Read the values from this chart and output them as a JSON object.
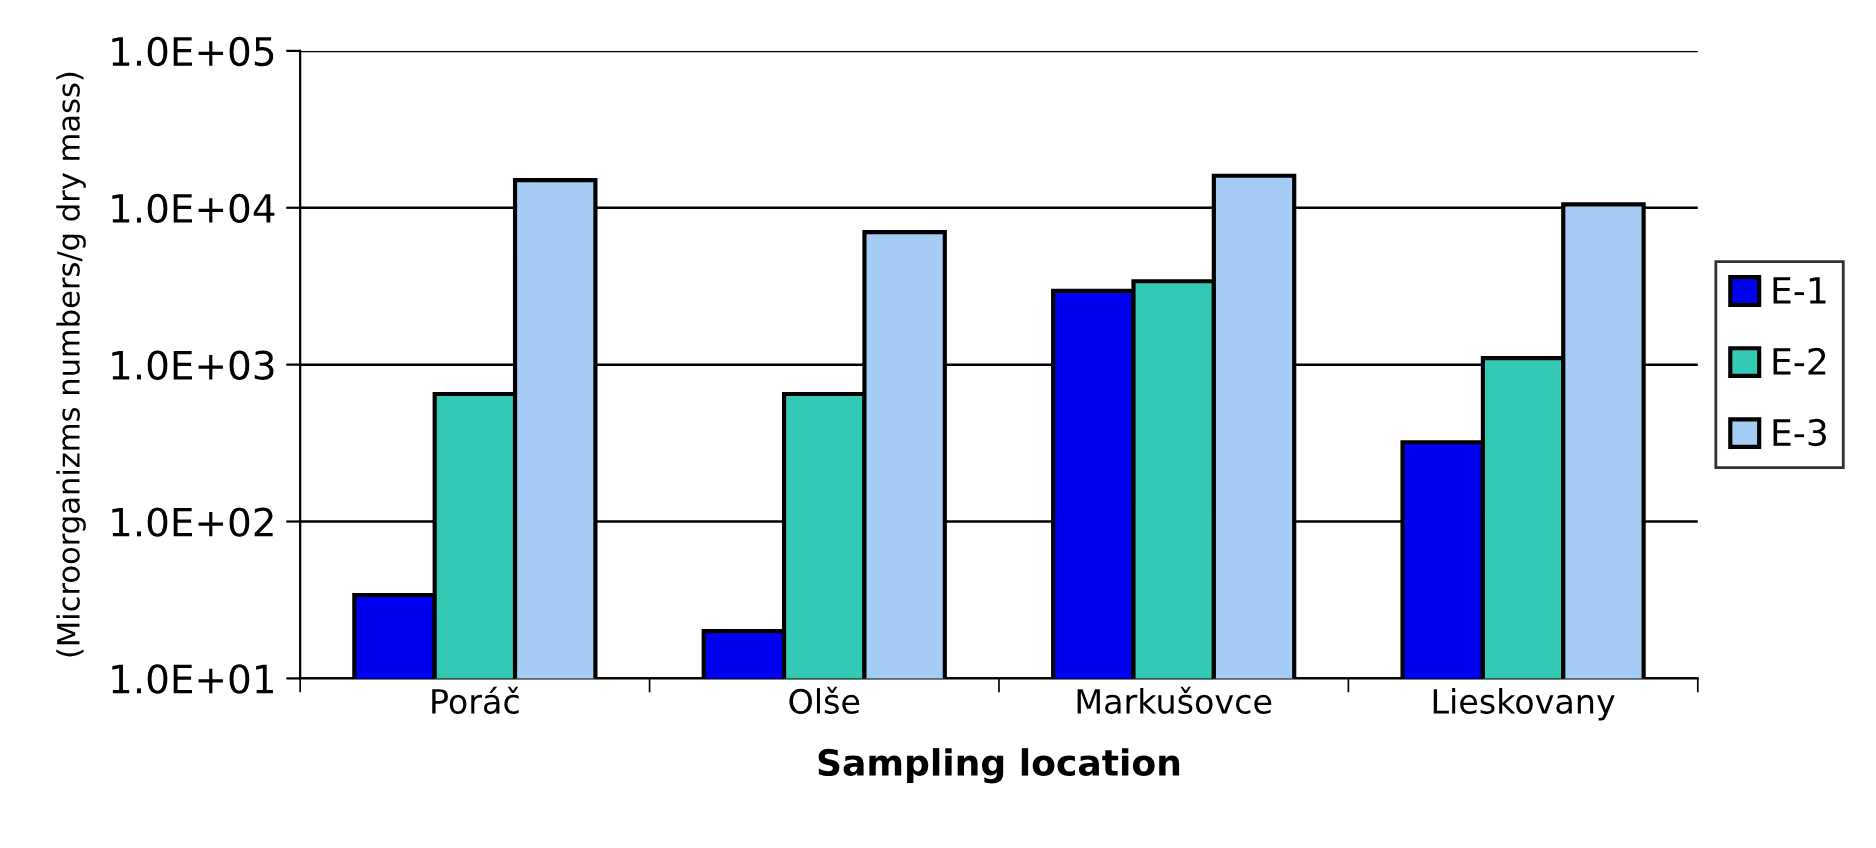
{
  "chart_data": {
    "type": "bar",
    "xlabel": "Sampling location",
    "ylabel": "(Microorganizms numbers/g dry mass)",
    "categories": [
      "Poráč",
      "Olše",
      "Markušovce",
      "Lieskovany"
    ],
    "series": [
      {
        "name": "E-1",
        "color": "#0000f0",
        "values": [
          34,
          20,
          2950,
          320
        ]
      },
      {
        "name": "E-2",
        "color": "#33c9b4",
        "values": [
          650,
          650,
          3400,
          1100
        ]
      },
      {
        "name": "E-3",
        "color": "#a4ccf4",
        "values": [
          15000,
          7000,
          16000,
          10500
        ]
      }
    ],
    "log": "y",
    "ylim": [
      10,
      100000
    ],
    "yticks": [
      {
        "value": 10,
        "label": "1.0E+01"
      },
      {
        "value": 100,
        "label": "1.0E+02"
      },
      {
        "value": 1000,
        "label": "1.0E+03"
      },
      {
        "value": 10000,
        "label": "1.0E+04"
      },
      {
        "value": 100000,
        "label": "1.0E+05"
      }
    ],
    "grid": "y",
    "legend": "right"
  }
}
